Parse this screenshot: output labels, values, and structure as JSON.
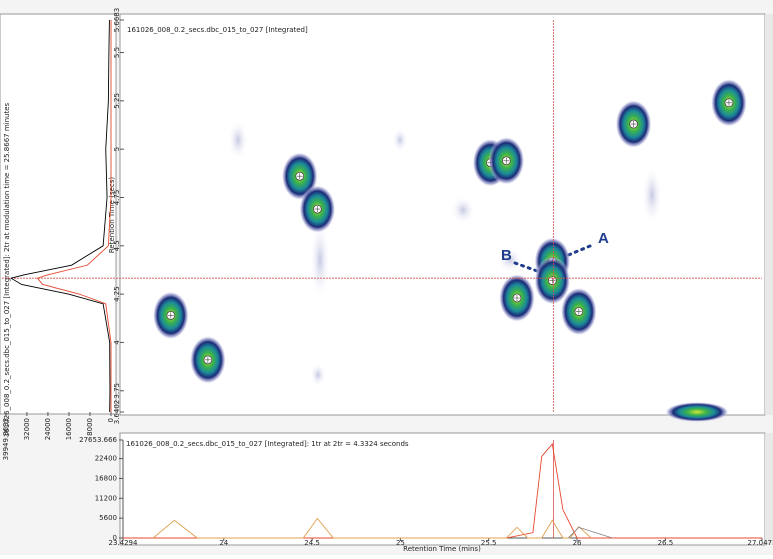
{
  "chart_data": [
    {
      "type": "contour",
      "title": "161026_008_0.2_secs.dbc_015_to_027 [Integrated]",
      "ylabel": "Retention Time (secs)",
      "xlim": [
        23.4294,
        27.0471
      ],
      "ylim": [
        3.6402,
        5.6683
      ],
      "yticks": [
        5.6683,
        5.5,
        5.25,
        5,
        4.75,
        4.5,
        4.25,
        4,
        3.75,
        3.6402
      ],
      "peaks": {
        "x": [
          23.7,
          23.91,
          24.43,
          24.53,
          25.51,
          25.6,
          25.66,
          25.86,
          25.86,
          26.01,
          26.32,
          26.86
        ],
        "y": [
          4.14,
          3.91,
          4.86,
          4.69,
          4.93,
          4.94,
          4.23,
          4.42,
          4.32,
          4.16,
          5.13,
          5.24
        ]
      },
      "crosshair": {
        "x": 25.8667,
        "y": 4.3324
      },
      "crosshair_color": "#d9534f",
      "annotations": [
        "A",
        "B"
      ]
    },
    {
      "type": "line",
      "title": "161026_008_0.2_secs.dbc_015_to_027 [Integrated]: 2tr at modulation time = 25.8667 minutes",
      "xlim": [
        39949.8633,
        0
      ],
      "xticks": [
        39949.8633,
        32000,
        24000,
        16000,
        8000,
        0
      ],
      "ylim": [
        3.6402,
        5.6683
      ],
      "series": [
        {
          "color": "#000000",
          "x": [
            3.6402,
            3.75,
            4.0,
            4.2,
            4.25,
            4.3,
            4.3324,
            4.35,
            4.4,
            4.5,
            4.75,
            5,
            5.25,
            5.5,
            5.6683
          ],
          "values": [
            500,
            400,
            500,
            3000,
            16000,
            34000,
            38000,
            33000,
            15000,
            3000,
            1500,
            2000,
            1000,
            800,
            600
          ]
        },
        {
          "color": "#e8472f",
          "x": [
            3.6402,
            3.75,
            4.0,
            4.2,
            4.25,
            4.3,
            4.3324,
            4.35,
            4.4,
            4.5,
            4.75,
            5,
            5.25,
            5.5,
            5.6683
          ],
          "values": [
            0,
            0,
            0,
            2000,
            12000,
            26000,
            28000,
            24000,
            9000,
            1000,
            0,
            0,
            0,
            0,
            0
          ]
        }
      ]
    },
    {
      "type": "line",
      "title": "161026_008_0.2_secs.dbc_015_to_027 [Integrated]: 1tr at 2tr = 4.3324 seconds",
      "xlabel": "Retention Time (mins)",
      "xlim": [
        23.4294,
        27.0471
      ],
      "ylim": [
        0,
        27653.666
      ],
      "xticks": [
        23.4294,
        24,
        24.5,
        25,
        25.5,
        26,
        26.5,
        27.0471
      ],
      "yticks": [
        0,
        5600,
        11200,
        16800,
        22400,
        27653.666
      ],
      "series": [
        {
          "color": "#e8472f",
          "x": [
            23.4294,
            25.6,
            25.75,
            25.8,
            25.86,
            25.92,
            26.0,
            27.0471
          ],
          "values": [
            0,
            0,
            1500,
            23000,
            26500,
            8000,
            0,
            0
          ]
        },
        {
          "color": "#e0a050",
          "x": [
            23.6,
            23.72,
            23.85,
            24.45,
            24.53,
            24.62,
            25.6,
            25.66,
            25.72,
            25.8,
            25.86,
            25.92,
            25.96,
            26.01,
            26.08
          ],
          "values": [
            0,
            5000,
            0,
            0,
            5500,
            0,
            0,
            3000,
            0,
            0,
            5000,
            0,
            0,
            3200,
            0
          ]
        },
        {
          "color": "#888888",
          "x": [
            25.95,
            26.01,
            26.2
          ],
          "values": [
            0,
            3000,
            0
          ]
        }
      ]
    }
  ]
}
